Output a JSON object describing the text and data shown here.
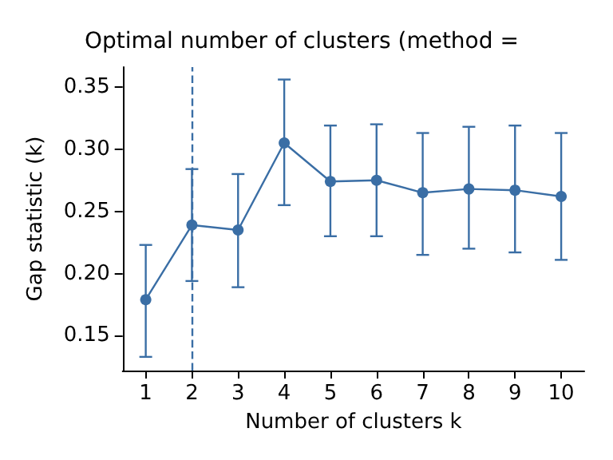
{
  "chart_data": {
    "type": "line",
    "title": "Optimal number of clusters (method =",
    "xlabel": "Number of clusters k",
    "ylabel": "Gap statistic (k)",
    "categories": [
      "1",
      "2",
      "3",
      "4",
      "5",
      "6",
      "7",
      "8",
      "9",
      "10"
    ],
    "series": [
      {
        "color": "#3a6ea5",
        "values": [
          0.179,
          0.239,
          0.235,
          0.305,
          0.274,
          0.275,
          0.265,
          0.268,
          0.267,
          0.262
        ],
        "errors": [
          [
            0.133,
            0.223
          ],
          [
            0.194,
            0.284
          ],
          [
            0.189,
            0.28
          ],
          [
            0.255,
            0.356
          ],
          [
            0.23,
            0.319
          ],
          [
            0.23,
            0.32
          ],
          [
            0.215,
            0.313
          ],
          [
            0.22,
            0.318
          ],
          [
            0.217,
            0.319
          ],
          [
            0.211,
            0.313
          ]
        ]
      }
    ],
    "ylim": [
      0.122,
      0.366
    ],
    "yticks": [
      {
        "value": 0.15,
        "label": "0.15"
      },
      {
        "value": 0.2,
        "label": "0.20"
      },
      {
        "value": 0.25,
        "label": "0.25"
      },
      {
        "value": 0.3,
        "label": "0.30"
      },
      {
        "value": 0.35,
        "label": "0.35"
      }
    ],
    "ref_lines": [
      {
        "axis": "x",
        "value": "2",
        "color": "#3a6ea5",
        "line_style": "dashed"
      }
    ],
    "grid": false,
    "marker": "circle",
    "line_style": "solid"
  }
}
